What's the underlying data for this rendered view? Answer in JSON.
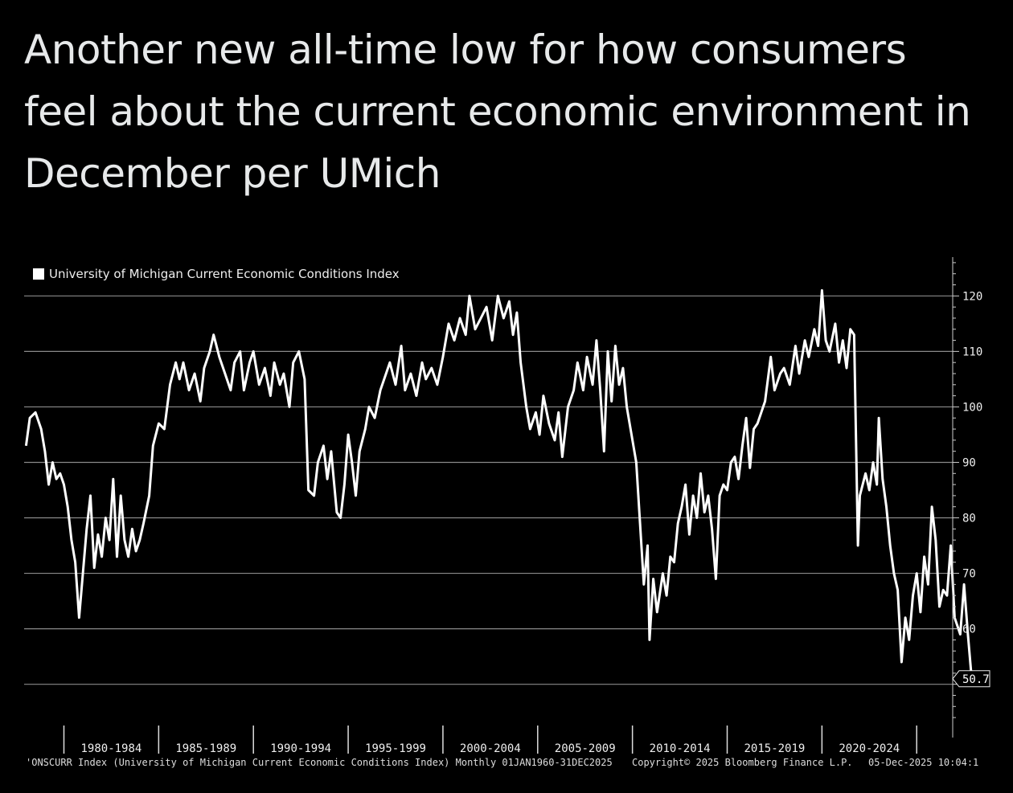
{
  "headline": {
    "line1": "Another new all-time low for how consumers",
    "line2": "feel about the current economic environment in",
    "line3": "December per UMich"
  },
  "footer": {
    "source": "'ONSCURR Index (University of Michigan Current Economic Conditions Index) Monthly 01JAN1960-31DEC2025",
    "copyright": "Copyright© 2025 Bloomberg Finance L.P.",
    "timestamp": "05-Dec-2025 10:04:1"
  },
  "colors": {
    "background": "#000000",
    "line": "#ffffff",
    "grid": "#8a8a8a",
    "text": "#e7e9ea"
  },
  "chart_data": {
    "type": "line",
    "legend": "University of Michigan Current Economic Conditions Index",
    "legend_position": "top-left",
    "ylim": [
      43,
      127
    ],
    "xlim": [
      1977.9,
      2026.9
    ],
    "y_ticks": [
      60,
      70,
      80,
      90,
      100,
      110,
      120
    ],
    "grid": true,
    "x_period_labels": [
      "1980-1984",
      "1985-1989",
      "1990-1994",
      "1995-1999",
      "2000-2004",
      "2005-2009",
      "2010-2014",
      "2015-2019",
      "2020-2024"
    ],
    "x_period_dividers": [
      1980,
      1985,
      1990,
      1995,
      2000,
      2005,
      2010,
      2015,
      2020,
      2025
    ],
    "last_value_label": "50.7",
    "series": [
      {
        "values": [
          [
            1978.0,
            93
          ],
          [
            1978.2,
            98
          ],
          [
            1978.5,
            99
          ],
          [
            1978.8,
            96
          ],
          [
            1979.0,
            92
          ],
          [
            1979.2,
            86
          ],
          [
            1979.4,
            90
          ],
          [
            1979.6,
            87
          ],
          [
            1979.8,
            88
          ],
          [
            1980.0,
            86
          ],
          [
            1980.2,
            82
          ],
          [
            1980.4,
            76
          ],
          [
            1980.6,
            72
          ],
          [
            1980.8,
            62
          ],
          [
            1981.0,
            70
          ],
          [
            1981.2,
            78
          ],
          [
            1981.4,
            84
          ],
          [
            1981.6,
            71
          ],
          [
            1981.8,
            77
          ],
          [
            1982.0,
            73
          ],
          [
            1982.2,
            80
          ],
          [
            1982.4,
            76
          ],
          [
            1982.6,
            87
          ],
          [
            1982.8,
            73
          ],
          [
            1983.0,
            84
          ],
          [
            1983.2,
            76
          ],
          [
            1983.4,
            73
          ],
          [
            1983.6,
            78
          ],
          [
            1983.8,
            74
          ],
          [
            1984.0,
            76
          ],
          [
            1984.2,
            79
          ],
          [
            1984.5,
            84
          ],
          [
            1984.7,
            93
          ],
          [
            1985.0,
            97
          ],
          [
            1985.3,
            96
          ],
          [
            1985.6,
            104
          ],
          [
            1985.9,
            108
          ],
          [
            1986.1,
            105
          ],
          [
            1986.3,
            108
          ],
          [
            1986.6,
            103
          ],
          [
            1986.9,
            106
          ],
          [
            1987.2,
            101
          ],
          [
            1987.4,
            107
          ],
          [
            1987.7,
            110
          ],
          [
            1987.9,
            113
          ],
          [
            1988.2,
            109
          ],
          [
            1988.5,
            106
          ],
          [
            1988.8,
            103
          ],
          [
            1989.0,
            108
          ],
          [
            1989.3,
            110
          ],
          [
            1989.5,
            103
          ],
          [
            1989.8,
            108
          ],
          [
            1990.0,
            110
          ],
          [
            1990.3,
            104
          ],
          [
            1990.6,
            107
          ],
          [
            1990.9,
            102
          ],
          [
            1991.1,
            108
          ],
          [
            1991.4,
            104
          ],
          [
            1991.6,
            106
          ],
          [
            1991.9,
            100
          ],
          [
            1992.1,
            108
          ],
          [
            1992.4,
            110
          ],
          [
            1992.7,
            105
          ],
          [
            1992.9,
            85
          ],
          [
            1993.2,
            84
          ],
          [
            1993.4,
            90
          ],
          [
            1993.7,
            93
          ],
          [
            1993.9,
            87
          ],
          [
            1994.1,
            92
          ],
          [
            1994.4,
            81
          ],
          [
            1994.6,
            80
          ],
          [
            1994.8,
            86
          ],
          [
            1995.0,
            95
          ],
          [
            1995.2,
            90
          ],
          [
            1995.4,
            84
          ],
          [
            1995.6,
            92
          ],
          [
            1995.9,
            96
          ],
          [
            1996.1,
            100
          ],
          [
            1996.4,
            98
          ],
          [
            1996.7,
            103
          ],
          [
            1997.0,
            106
          ],
          [
            1997.2,
            108
          ],
          [
            1997.5,
            104
          ],
          [
            1997.8,
            111
          ],
          [
            1998.0,
            103
          ],
          [
            1998.3,
            106
          ],
          [
            1998.6,
            102
          ],
          [
            1998.9,
            108
          ],
          [
            1999.1,
            105
          ],
          [
            1999.4,
            107
          ],
          [
            1999.7,
            104
          ],
          [
            2000.0,
            109
          ],
          [
            2000.3,
            115
          ],
          [
            2000.6,
            112
          ],
          [
            2000.9,
            116
          ],
          [
            2001.2,
            113
          ],
          [
            2001.4,
            120
          ],
          [
            2001.7,
            114
          ],
          [
            2002.0,
            116
          ],
          [
            2002.3,
            118
          ],
          [
            2002.6,
            112
          ],
          [
            2002.9,
            120
          ],
          [
            2003.2,
            116
          ],
          [
            2003.5,
            119
          ],
          [
            2003.7,
            113
          ],
          [
            2003.9,
            117
          ],
          [
            2004.1,
            108
          ],
          [
            2004.4,
            100
          ],
          [
            2004.6,
            96
          ],
          [
            2004.9,
            99
          ],
          [
            2005.1,
            95
          ],
          [
            2005.3,
            102
          ],
          [
            2005.6,
            97
          ],
          [
            2005.9,
            94
          ],
          [
            2006.1,
            99
          ],
          [
            2006.3,
            91
          ],
          [
            2006.6,
            100
          ],
          [
            2006.9,
            103
          ],
          [
            2007.1,
            108
          ],
          [
            2007.4,
            103
          ],
          [
            2007.6,
            109
          ],
          [
            2007.9,
            104
          ],
          [
            2008.1,
            112
          ],
          [
            2008.3,
            103
          ],
          [
            2008.5,
            92
          ],
          [
            2008.7,
            110
          ],
          [
            2008.9,
            101
          ],
          [
            2009.1,
            111
          ],
          [
            2009.3,
            104
          ],
          [
            2009.5,
            107
          ],
          [
            2009.7,
            100
          ],
          [
            2009.9,
            96
          ],
          [
            2010.2,
            90
          ],
          [
            2010.4,
            79
          ],
          [
            2010.6,
            68
          ],
          [
            2010.8,
            75
          ],
          [
            2010.9,
            58
          ],
          [
            2011.1,
            69
          ],
          [
            2011.3,
            63
          ],
          [
            2011.6,
            70
          ],
          [
            2011.8,
            66
          ],
          [
            2012.0,
            73
          ],
          [
            2012.2,
            72
          ],
          [
            2012.4,
            79
          ],
          [
            2012.6,
            82
          ],
          [
            2012.8,
            86
          ],
          [
            2013.0,
            77
          ],
          [
            2013.2,
            84
          ],
          [
            2013.4,
            80
          ],
          [
            2013.6,
            88
          ],
          [
            2013.8,
            81
          ],
          [
            2014.0,
            84
          ],
          [
            2014.2,
            78
          ],
          [
            2014.4,
            69
          ],
          [
            2014.6,
            84
          ],
          [
            2014.8,
            86
          ],
          [
            2015.0,
            85
          ],
          [
            2015.2,
            90
          ],
          [
            2015.4,
            91
          ],
          [
            2015.6,
            87
          ],
          [
            2015.8,
            93
          ],
          [
            2016.0,
            98
          ],
          [
            2016.2,
            89
          ],
          [
            2016.4,
            96
          ],
          [
            2016.6,
            97
          ],
          [
            2016.8,
            99
          ],
          [
            2017.0,
            101
          ],
          [
            2017.3,
            109
          ],
          [
            2017.5,
            103
          ],
          [
            2017.8,
            106
          ],
          [
            2018.0,
            107
          ],
          [
            2018.3,
            104
          ],
          [
            2018.6,
            111
          ],
          [
            2018.8,
            106
          ],
          [
            2019.1,
            112
          ],
          [
            2019.3,
            109
          ],
          [
            2019.6,
            114
          ],
          [
            2019.8,
            111
          ],
          [
            2020.0,
            121
          ],
          [
            2020.2,
            112
          ],
          [
            2020.4,
            110
          ],
          [
            2020.7,
            115
          ],
          [
            2020.9,
            108
          ],
          [
            2021.1,
            112
          ],
          [
            2021.3,
            107
          ],
          [
            2021.5,
            114
          ],
          [
            2021.7,
            113
          ],
          [
            2021.9,
            75
          ],
          [
            2022.0,
            84
          ],
          [
            2022.3,
            88
          ],
          [
            2022.5,
            85
          ],
          [
            2022.7,
            90
          ],
          [
            2022.9,
            86
          ],
          [
            2023.0,
            98
          ],
          [
            2023.2,
            87
          ],
          [
            2023.4,
            82
          ],
          [
            2023.6,
            75
          ],
          [
            2023.8,
            70
          ],
          [
            2024.0,
            67
          ],
          [
            2024.2,
            54
          ],
          [
            2024.4,
            62
          ],
          [
            2024.6,
            58
          ],
          [
            2024.8,
            66
          ],
          [
            2025.0,
            70
          ],
          [
            2025.2,
            63
          ],
          [
            2025.4,
            73
          ],
          [
            2025.6,
            68
          ],
          [
            2025.8,
            82
          ],
          [
            2026.0,
            76
          ],
          [
            2026.2,
            64
          ],
          [
            2026.4,
            67
          ],
          [
            2026.6,
            66
          ],
          [
            2026.8,
            75
          ],
          [
            2027.0,
            62
          ],
          [
            2027.3,
            59
          ],
          [
            2027.5,
            68
          ],
          [
            2027.7,
            59
          ],
          [
            2027.9,
            51
          ]
        ]
      }
    ]
  }
}
